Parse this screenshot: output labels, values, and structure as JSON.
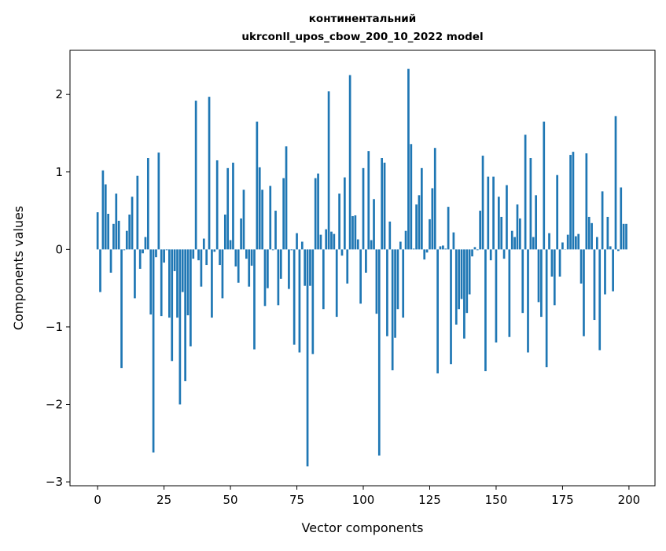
{
  "chart_data": {
    "type": "bar",
    "title": [
      "континентальний",
      "ukrconll_upos_cbow_200_10_2022 model"
    ],
    "xlabel": "Vector components",
    "ylabel": "Components values",
    "xlim": [
      -10.4,
      209.8
    ],
    "ylim": [
      -3.05,
      2.57
    ],
    "xticks": [
      0,
      25,
      50,
      75,
      100,
      125,
      150,
      175,
      200
    ],
    "xtick_labels": [
      "0",
      "25",
      "50",
      "75",
      "100",
      "125",
      "150",
      "175",
      "200"
    ],
    "yticks": [
      -3,
      -2,
      -1,
      0,
      1,
      2
    ],
    "ytick_labels": [
      "−3",
      "−2",
      "−1",
      "0",
      "1",
      "2"
    ],
    "grid": false,
    "color": "#1f77b4",
    "values": [
      0.48,
      -0.55,
      1.02,
      0.84,
      0.46,
      -0.3,
      0.33,
      0.72,
      0.37,
      -1.53,
      -0.01,
      0.24,
      0.45,
      0.68,
      -0.63,
      0.95,
      -0.25,
      -0.05,
      0.16,
      1.18,
      -0.84,
      -2.62,
      -0.1,
      1.25,
      -0.86,
      -0.17,
      -0.01,
      -0.88,
      -1.44,
      -0.28,
      -0.88,
      -2.0,
      -0.55,
      -1.7,
      -0.85,
      -1.25,
      -0.12,
      1.92,
      -0.14,
      -0.48,
      0.14,
      -0.2,
      1.97,
      -0.88,
      -0.03,
      1.15,
      -0.2,
      -0.63,
      0.45,
      1.05,
      0.12,
      1.12,
      -0.22,
      -0.43,
      0.4,
      0.77,
      -0.12,
      -0.48,
      -0.21,
      -1.29,
      1.65,
      1.06,
      0.77,
      -0.73,
      -0.5,
      0.82,
      -0.01,
      0.5,
      -0.72,
      -0.38,
      0.92,
      1.33,
      -0.51,
      -0.01,
      -1.23,
      0.21,
      -1.33,
      0.1,
      -0.47,
      -2.8,
      -0.47,
      -1.35,
      0.92,
      0.98,
      0.19,
      -0.77,
      0.26,
      2.04,
      0.23,
      0.2,
      -0.87,
      0.72,
      -0.08,
      0.93,
      -0.44,
      2.25,
      0.43,
      0.44,
      0.13,
      -0.7,
      1.05,
      -0.3,
      1.27,
      0.12,
      0.65,
      -0.83,
      -2.66,
      1.18,
      1.12,
      -1.12,
      0.36,
      -1.56,
      -1.14,
      -0.77,
      0.1,
      -0.88,
      0.24,
      2.33,
      1.36,
      0.01,
      0.58,
      0.7,
      1.05,
      -0.13,
      -0.04,
      0.39,
      0.79,
      1.31,
      -1.6,
      0.04,
      0.05,
      0.01,
      0.55,
      -1.48,
      0.22,
      -0.97,
      -0.77,
      -0.64,
      -1.15,
      -0.82,
      -0.58,
      -0.09,
      0.03,
      -0.01,
      0.5,
      1.21,
      -1.57,
      0.94,
      -0.14,
      0.94,
      -1.2,
      0.68,
      0.42,
      -0.12,
      0.83,
      -1.13,
      0.24,
      0.16,
      0.58,
      0.4,
      -0.82,
      1.48,
      -1.33,
      1.18,
      0.16,
      0.7,
      -0.68,
      -0.87,
      1.65,
      -1.52,
      0.21,
      -0.35,
      -0.72,
      0.96,
      -0.35,
      0.09,
      0.0,
      0.19,
      1.22,
      1.26,
      0.17,
      0.2,
      -0.44,
      -1.12,
      1.24,
      0.42,
      0.34,
      -0.91,
      0.16,
      -1.3,
      0.75,
      -0.58,
      0.42,
      0.04,
      -0.54,
      1.72,
      -0.02,
      0.8,
      0.33,
      0.33
    ]
  }
}
